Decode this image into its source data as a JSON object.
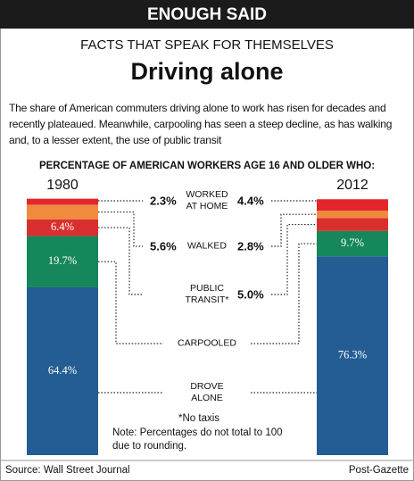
{
  "chart_data": {
    "type": "stacked_bar",
    "banner": "ENOUGH SAID",
    "kicker": "FACTS THAT SPEAK FOR THEMSELVES",
    "title": "Driving alone",
    "description": "The share of American commuters driving alone to work has risen for decades and recently plateaued. Meanwhile, carpooling has seen a steep decline, as has walking and, to a lesser extent, the use of public transit",
    "heading": "PERCENTAGE OF AMERICAN WORKERS AGE 16 AND OLDER WHO:",
    "categories": [
      "1980",
      "2012"
    ],
    "series": [
      {
        "name": "WORKED\nAT HOME",
        "color": "#e3262b",
        "values": [
          2.3,
          4.4
        ],
        "value_labels": [
          "2.3%",
          "4.4%"
        ]
      },
      {
        "name": "WALKED",
        "color": "#f08a3c",
        "values": [
          5.6,
          2.8
        ],
        "value_labels": [
          "5.6%",
          "2.8%"
        ]
      },
      {
        "name": "PUBLIC\nTRANSIT*",
        "color": "#d9302f",
        "values": [
          6.4,
          5.0
        ],
        "value_labels": [
          "6.4%",
          "5.0%"
        ]
      },
      {
        "name": "CARPOOLED",
        "color": "#16875a",
        "values": [
          19.7,
          9.7
        ],
        "value_labels": [
          "19.7%",
          "9.7%"
        ]
      },
      {
        "name": "DROVE\nALONE",
        "color": "#245d94",
        "values": [
          64.4,
          76.3
        ],
        "value_labels": [
          "64.4%",
          "76.3%"
        ]
      }
    ],
    "footnotes": [
      "*No taxis",
      "Note: Percentages do not total to 100 due to rounding."
    ],
    "source": "Source: Wall Street Journal",
    "credit": "Post-Gazette"
  }
}
